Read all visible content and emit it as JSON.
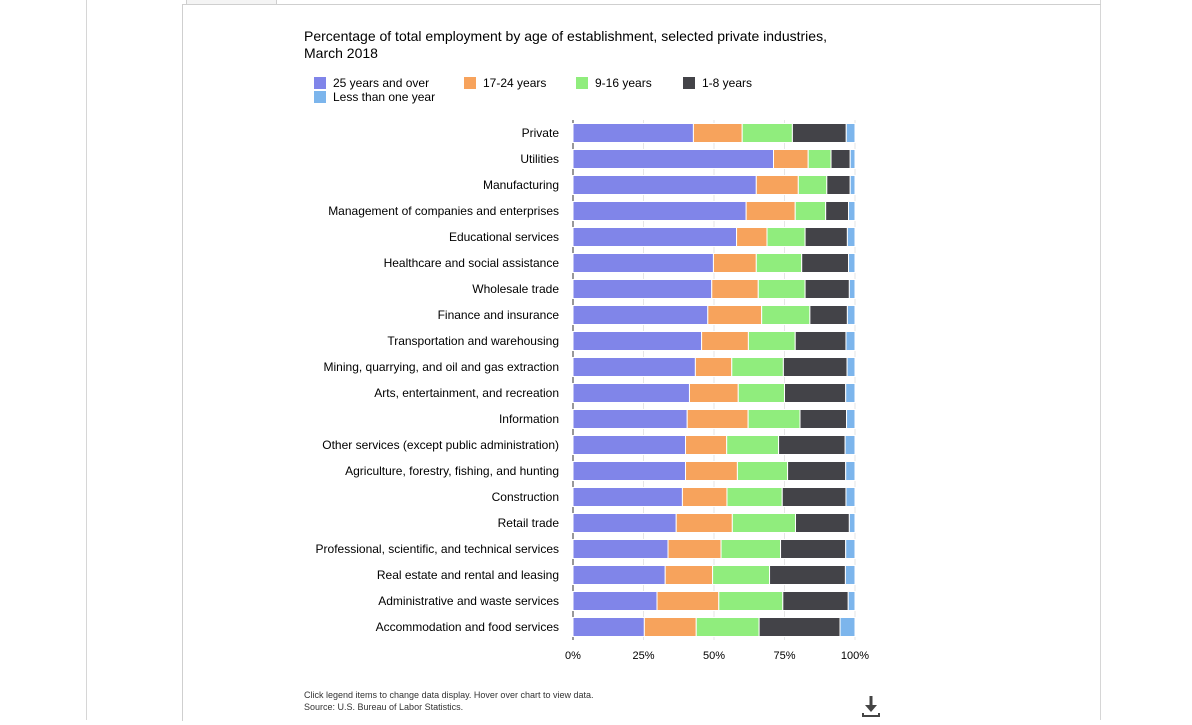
{
  "chart_data": {
    "type": "bar",
    "orientation": "horizontal",
    "stacked": true,
    "stack_mode": "percent",
    "title": "Percentage of total employment by age of establishment, selected private industries, March 2018",
    "categories": [
      "Private",
      "Utilities",
      "Manufacturing",
      "Management of companies and enterprises",
      "Educational services",
      "Healthcare and social assistance",
      "Wholesale trade",
      "Finance and insurance",
      "Transportation and warehousing",
      "Mining, quarrying, and oil and gas extraction",
      "Arts, entertainment, and recreation",
      "Information",
      "Other services (except public administration)",
      "Agriculture, forestry, fishing, and hunting",
      "Construction",
      "Retail trade",
      "Professional, scientific, and technical services",
      "Real estate and rental and leasing",
      "Administrative and waste services",
      "Accommodation and food services"
    ],
    "series": [
      {
        "name": "25 years and over",
        "color": "#8085e9",
        "values": [
          42.7,
          71.1,
          65.0,
          61.4,
          58.0,
          49.8,
          49.2,
          47.8,
          45.6,
          43.4,
          41.3,
          40.5,
          39.9,
          39.9,
          38.8,
          36.6,
          33.7,
          32.7,
          29.8,
          25.3
        ]
      },
      {
        "name": "17-24 years",
        "color": "#f7a35c",
        "values": [
          17.3,
          12.3,
          14.9,
          17.4,
          10.8,
          15.2,
          16.5,
          19.1,
          16.6,
          12.9,
          17.3,
          21.6,
          14.6,
          18.4,
          15.8,
          19.9,
          18.8,
          16.8,
          21.9,
          18.4
        ]
      },
      {
        "name": "9-16 years",
        "color": "#90ed7d",
        "values": [
          17.8,
          8.1,
          10.1,
          10.8,
          13.5,
          16.1,
          16.6,
          17.1,
          16.6,
          18.3,
          16.4,
          18.4,
          18.4,
          17.8,
          19.6,
          22.4,
          21.1,
          20.2,
          22.7,
          22.3
        ]
      },
      {
        "name": "1-8 years",
        "color": "#434348",
        "values": [
          19.1,
          6.8,
          8.3,
          8.1,
          15.0,
          16.6,
          15.7,
          13.3,
          18.0,
          22.6,
          21.7,
          16.5,
          23.6,
          20.6,
          22.6,
          19.1,
          23.1,
          26.9,
          23.2,
          28.7
        ]
      },
      {
        "name": "Less than one year",
        "color": "#7cb5ec",
        "values": [
          3.1,
          1.7,
          1.7,
          2.3,
          2.7,
          2.3,
          2.0,
          2.7,
          3.2,
          2.8,
          3.3,
          3.0,
          3.5,
          3.3,
          3.2,
          2.0,
          3.3,
          3.4,
          2.4,
          5.3
        ]
      }
    ],
    "x_ticks": [
      "0%",
      "25%",
      "50%",
      "75%",
      "100%"
    ],
    "xlim": [
      0,
      100
    ],
    "grid": true,
    "legend_placement": "top-left"
  },
  "footnote": {
    "line1": "Click legend items to change data display. Hover over chart to view data.",
    "line2": "Source: U.S. Bureau of Labor Statistics."
  },
  "icons": {
    "download": "download-icon"
  }
}
